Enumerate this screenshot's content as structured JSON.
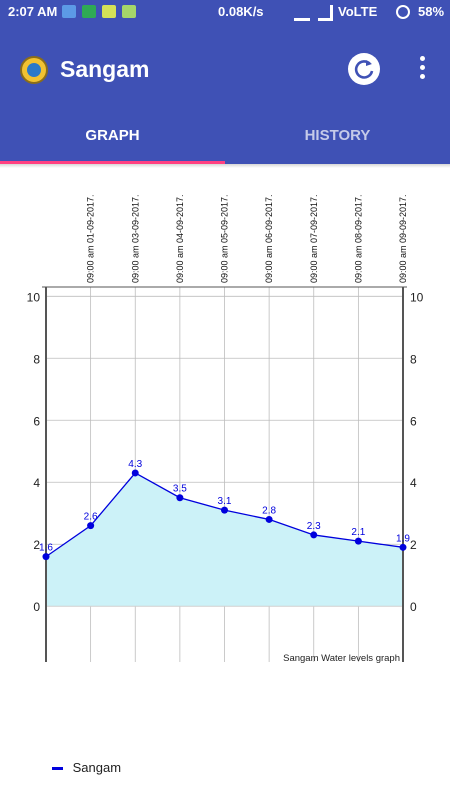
{
  "status_bar": {
    "time": "2:07 AM",
    "network_speed": "0.08K/s",
    "carrier": "VoLTE",
    "battery": "58%"
  },
  "app_bar": {
    "title": "Sangam",
    "icons": [
      "app-logo",
      "refresh-icon",
      "more-vert-icon"
    ]
  },
  "tabs": [
    {
      "label": "GRAPH",
      "active": true
    },
    {
      "label": "HISTORY",
      "active": false
    }
  ],
  "colors": {
    "primary": "#3F51B5",
    "tab_indicator": "#FF4081",
    "series_line": "#0000DD",
    "area_fill": "#CCF2F8"
  },
  "chart_data": {
    "type": "area",
    "x": [
      "",
      "09:00 am 01-09-2017.",
      "09:00 am 03-09-2017.",
      "09:00 am 04-09-2017.",
      "09:00 am 05-09-2017.",
      "09:00 am 06-09-2017.",
      "09:00 am 07-09-2017.",
      "09:00 am 08-09-2017.",
      "09:00 am 09-09-2017."
    ],
    "series": [
      {
        "name": "Sangam",
        "values": [
          1.6,
          2.6,
          4.3,
          3.5,
          3.1,
          2.8,
          2.3,
          2.1,
          1.9
        ]
      }
    ],
    "ylim": [
      -1.8,
      10.3
    ],
    "yticks": [
      0,
      2,
      4,
      6,
      8,
      10
    ],
    "annotation": "Sangam Water levels graph",
    "grid": true,
    "legend_position": "bottom-left"
  }
}
